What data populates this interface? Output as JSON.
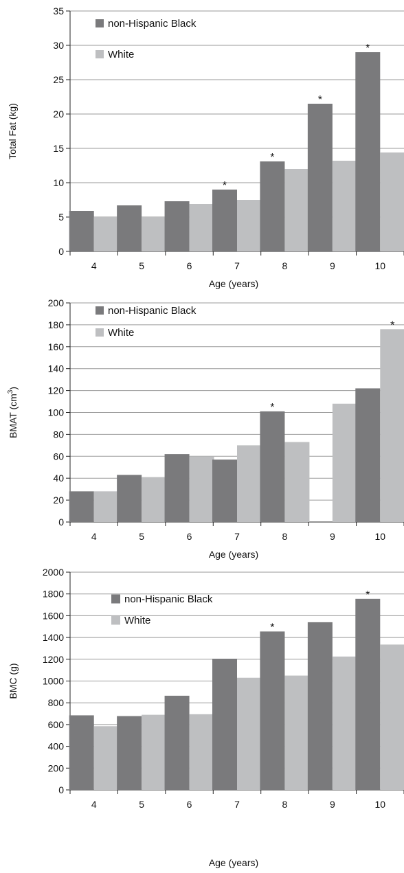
{
  "chart_data": [
    {
      "type": "bar",
      "categories": [
        "4",
        "5",
        "6",
        "7",
        "8",
        "9",
        "10"
      ],
      "series": [
        {
          "name": "non-Hispanic Black",
          "values": [
            5.9,
            6.7,
            7.3,
            9.0,
            13.1,
            21.5,
            29.0
          ],
          "color": "#7a7a7c"
        },
        {
          "name": "White",
          "values": [
            5.0,
            5.0,
            6.9,
            7.5,
            12.0,
            13.2,
            14.4
          ],
          "color": "#bebfc1"
        }
      ],
      "significance": [
        false,
        false,
        false,
        true,
        true,
        true,
        true
      ],
      "significance_marker": "*",
      "xlabel": "Age (years)",
      "ylabel": "Total Fat (kg)",
      "ylabel_sup": "",
      "ylabel_post": "",
      "ylim": [
        0,
        35
      ],
      "yticks": [
        0,
        5,
        10,
        15,
        20,
        25,
        30,
        35
      ],
      "grid": true,
      "legend_placement": "top-left"
    },
    {
      "type": "bar",
      "categories": [
        "4",
        "5",
        "6",
        "7",
        "8",
        "9",
        "10"
      ],
      "series": [
        {
          "name": "non-Hispanic Black",
          "values": [
            28,
            43,
            62,
            57,
            101,
            null,
            122
          ],
          "color": "#7a7a7c"
        },
        {
          "name": "White",
          "values": [
            28,
            41,
            60,
            70,
            73,
            108,
            176
          ],
          "color": "#bebfc1"
        }
      ],
      "significance": [
        false,
        false,
        false,
        false,
        true,
        false,
        true
      ],
      "significance_marker": "*",
      "xlabel": "Age (years)",
      "ylabel": "BMAT (cm",
      "ylabel_sup": "3",
      "ylabel_post": ")",
      "ylim": [
        0,
        200
      ],
      "yticks": [
        0,
        20,
        40,
        60,
        80,
        100,
        120,
        140,
        160,
        180,
        200
      ],
      "grid": true,
      "legend_placement": "top-left"
    },
    {
      "type": "bar",
      "categories": [
        "4",
        "5",
        "6",
        "7",
        "8",
        "9",
        "10"
      ],
      "series": [
        {
          "name": "non-Hispanic Black",
          "values": [
            685,
            678,
            865,
            1205,
            1455,
            1540,
            1755
          ],
          "color": "#7a7a7c"
        },
        {
          "name": "White",
          "values": [
            585,
            690,
            695,
            1030,
            1050,
            1225,
            1335
          ],
          "color": "#bebfc1"
        }
      ],
      "significance": [
        false,
        false,
        false,
        false,
        true,
        false,
        true
      ],
      "significance_marker": "*",
      "xlabel": "Age (years)",
      "ylabel": "BMC (g)",
      "ylabel_sup": "",
      "ylabel_post": "",
      "ylim": [
        0,
        2000
      ],
      "yticks": [
        0,
        200,
        400,
        600,
        800,
        1000,
        1200,
        1400,
        1600,
        1800,
        2000
      ],
      "grid": true,
      "legend_placement": "top-left"
    }
  ]
}
